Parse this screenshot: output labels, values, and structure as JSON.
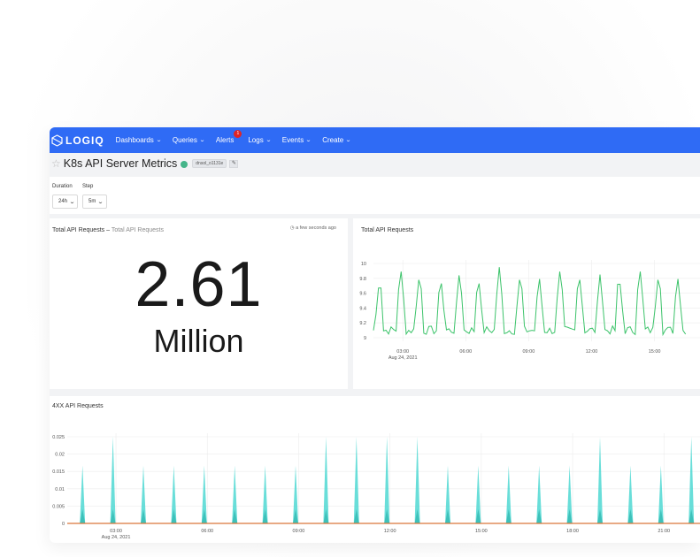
{
  "navbar": {
    "logo_text": "LOGIQ",
    "items": [
      {
        "label": "Dashboards"
      },
      {
        "label": "Queries"
      },
      {
        "label": "Alerts",
        "badge": "1"
      },
      {
        "label": "Logs"
      },
      {
        "label": "Events"
      },
      {
        "label": "Create"
      }
    ],
    "color": "#2f6bf5"
  },
  "page": {
    "title": "K8s API Server Metrics",
    "tag": "dnsol_o1131e"
  },
  "controls": {
    "duration_label": "Duration",
    "duration_value": "24h",
    "step_label": "Step",
    "step_value": "5m"
  },
  "counter_panel": {
    "title": "Total API Requests",
    "separator": "–",
    "subtitle": "Total API Requests",
    "timestamp": "a few seconds ago",
    "value": "2.61",
    "unit": "Million"
  },
  "total_chart": {
    "title": "Total API Requests",
    "chart_data": {
      "type": "line",
      "color": "#3cc36a",
      "x_ticks": [
        "03:00",
        "06:00",
        "09:00",
        "12:00",
        "15:00"
      ],
      "x_tick_sub": "Aug 24, 2021",
      "y_ticks": [
        "10",
        "9.8",
        "9.6",
        "9.4",
        "9.2",
        "9"
      ],
      "ylim": [
        9,
        10
      ],
      "baseline": 9.1,
      "spike_hours": [
        1.9,
        2.9,
        3.8,
        4.8,
        5.7,
        6.6,
        7.6,
        8.6,
        9.5,
        10.5,
        11.4,
        12.4,
        13.3,
        14.3,
        15.2,
        16.1
      ],
      "spike_values": [
        9.85,
        9.95,
        9.9,
        9.85,
        9.9,
        9.85,
        9.95,
        9.9,
        9.85,
        9.95,
        9.9,
        9.85,
        9.9,
        9.95,
        9.9,
        9.85
      ]
    }
  },
  "errors_chart": {
    "title": "4XX API Requests",
    "chart_data": {
      "type": "area",
      "color": "#4fd8d2",
      "x_ticks": [
        "03:00",
        "06:00",
        "09:00",
        "12:00",
        "15:00",
        "18:00",
        "21:00"
      ],
      "x_tick_sub": "Aug 24, 2021",
      "y_ticks": [
        "0.025",
        "0.02",
        "0.015",
        "0.01",
        "0.005",
        "0"
      ],
      "ylim": [
        0,
        0.025
      ],
      "spike_hours": [
        1.9,
        2.9,
        3.9,
        4.9,
        5.9,
        6.9,
        7.9,
        8.9,
        9.9,
        10.9,
        11.9,
        12.9,
        13.9,
        14.9,
        15.9,
        16.9,
        17.9,
        18.9,
        19.9,
        20.9,
        21.9
      ],
      "spike_values": [
        0.0167,
        0.025,
        0.0167,
        0.0167,
        0.0167,
        0.0167,
        0.0167,
        0.0167,
        0.025,
        0.025,
        0.025,
        0.025,
        0.0167,
        0.0167,
        0.0167,
        0.0167,
        0.0167,
        0.025,
        0.0167,
        0.0167,
        0.025
      ]
    }
  }
}
